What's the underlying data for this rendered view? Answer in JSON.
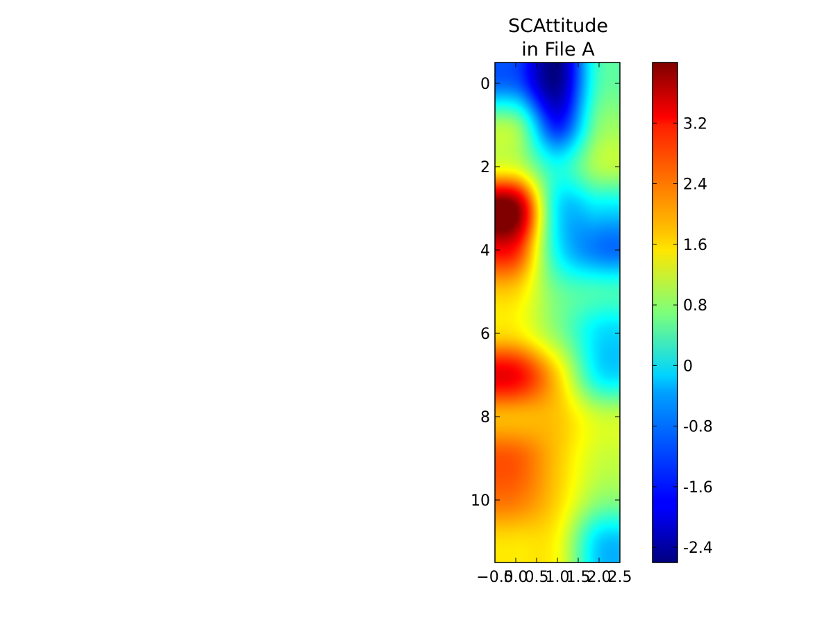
{
  "chart_data": {
    "type": "heatmap",
    "title": [
      "SCAttitude",
      "in File A"
    ],
    "interpolation": "bicubic",
    "colormap": "jet",
    "x": [
      0,
      1,
      2
    ],
    "y": [
      0,
      1,
      2,
      3,
      4,
      5,
      6,
      7,
      8,
      9,
      10,
      11
    ],
    "xlim": [
      -0.5,
      2.5
    ],
    "ylim": [
      11.5,
      -0.5
    ],
    "xticks": [
      "−0.5",
      "0.0",
      "0.5",
      "1.0",
      "1.5",
      "2.0",
      "2.5"
    ],
    "xtick_values": [
      -0.5,
      0.0,
      0.5,
      1.0,
      1.5,
      2.0,
      2.5
    ],
    "yticks": [
      "0",
      "2",
      "4",
      "6",
      "8",
      "10"
    ],
    "ytick_values": [
      0,
      2,
      4,
      6,
      8,
      10
    ],
    "values": [
      [
        -1.2,
        -2.5,
        0.3
      ],
      [
        0.8,
        -1.6,
        0.7
      ],
      [
        1.3,
        0.0,
        1.0
      ],
      [
        4.0,
        -0.2,
        -0.3
      ],
      [
        3.0,
        -0.1,
        -1.0
      ],
      [
        1.8,
        0.6,
        0.3
      ],
      [
        1.7,
        0.8,
        -0.3
      ],
      [
        3.2,
        1.8,
        -0.2
      ],
      [
        2.0,
        1.9,
        1.2
      ],
      [
        2.6,
        1.9,
        1.2
      ],
      [
        2.4,
        1.8,
        0.8
      ],
      [
        1.7,
        1.5,
        -0.4
      ]
    ],
    "colorbar": {
      "vmin": -2.6,
      "vmax": 4.0,
      "tick_values": [
        -2.4,
        -1.6,
        -0.8,
        0,
        0.8,
        1.6,
        2.4,
        3.2
      ],
      "tick_labels": [
        "-2.4",
        "-1.6",
        "-0.8",
        "0",
        "0.8",
        "1.6",
        "2.4",
        "3.2"
      ]
    }
  }
}
